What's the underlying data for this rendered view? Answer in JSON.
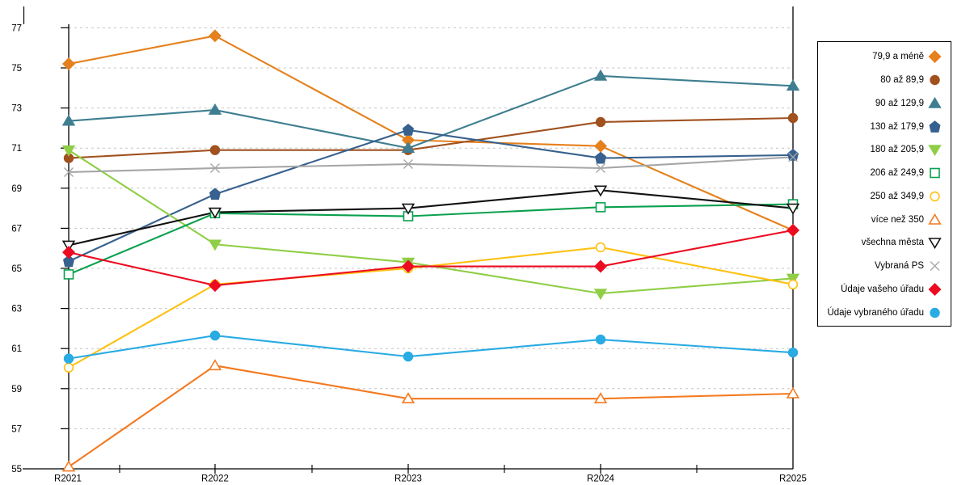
{
  "chart_data": {
    "type": "line",
    "x_categories": [
      "R2021",
      "R2022",
      "R2023",
      "R2024",
      "R2025"
    ],
    "y_ticks": [
      77,
      75,
      73,
      71,
      69,
      67,
      65,
      63,
      61,
      59,
      57,
      55
    ],
    "ylim": [
      55,
      77
    ],
    "grid": "horizontal-dashed",
    "grid_color": "#C4C4C4",
    "axis_color": "#000000",
    "background_color": "#FFFFFF",
    "legend_position": "right",
    "series": [
      {
        "name": "79,9 a méně",
        "marker": "diamond",
        "style": "filled",
        "color": "#E5801C",
        "values": [
          75.2,
          76.6,
          71.4,
          71.1,
          66.9
        ]
      },
      {
        "name": "80 až 89,9",
        "marker": "circle",
        "style": "filled",
        "color": "#A0511E",
        "values": [
          70.5,
          70.9,
          70.9,
          72.3,
          72.5
        ]
      },
      {
        "name": "90 až 129,9",
        "marker": "triangle-up",
        "style": "filled",
        "color": "#3E7E90",
        "values": [
          72.35,
          72.9,
          71.0,
          74.6,
          74.1
        ]
      },
      {
        "name": "130 až 179,9",
        "marker": "pentagon",
        "style": "filled",
        "color": "#37618E",
        "values": [
          65.35,
          68.7,
          71.9,
          70.5,
          70.65
        ]
      },
      {
        "name": "180 až 205,9",
        "marker": "triangle-down",
        "style": "filled",
        "color": "#8FCE46",
        "values": [
          70.9,
          66.2,
          65.3,
          63.75,
          64.5
        ]
      },
      {
        "name": "206 až 249,9",
        "marker": "square",
        "style": "open",
        "color": "#0AA04E",
        "values": [
          64.7,
          67.75,
          67.6,
          68.05,
          68.2
        ]
      },
      {
        "name": "250 až 349,9",
        "marker": "circle",
        "style": "open",
        "color": "#FDC112",
        "values": [
          60.05,
          64.2,
          65.0,
          66.05,
          64.2
        ]
      },
      {
        "name": "více než 350",
        "marker": "triangle-up",
        "style": "open",
        "color": "#F4791F",
        "values": [
          55.1,
          60.15,
          58.5,
          58.5,
          58.75
        ]
      },
      {
        "name": "všechna města",
        "marker": "triangle-down",
        "style": "open",
        "color": "#111111",
        "values": [
          66.15,
          67.8,
          68.0,
          68.9,
          68.0
        ]
      },
      {
        "name": "Vybraná PS",
        "marker": "x",
        "style": "open",
        "color": "#A6A6A6",
        "values": [
          69.8,
          70.0,
          70.2,
          70.0,
          70.55
        ]
      },
      {
        "name": "Údaje vašeho úřadu",
        "marker": "diamond",
        "style": "filled",
        "color": "#EC0B20",
        "values": [
          65.8,
          64.15,
          65.1,
          65.1,
          66.9
        ]
      },
      {
        "name": "Údaje vybraného úřadu",
        "marker": "circle",
        "style": "filled",
        "color": "#29ABE3",
        "values": [
          60.5,
          61.65,
          60.6,
          61.45,
          60.8
        ]
      }
    ]
  }
}
